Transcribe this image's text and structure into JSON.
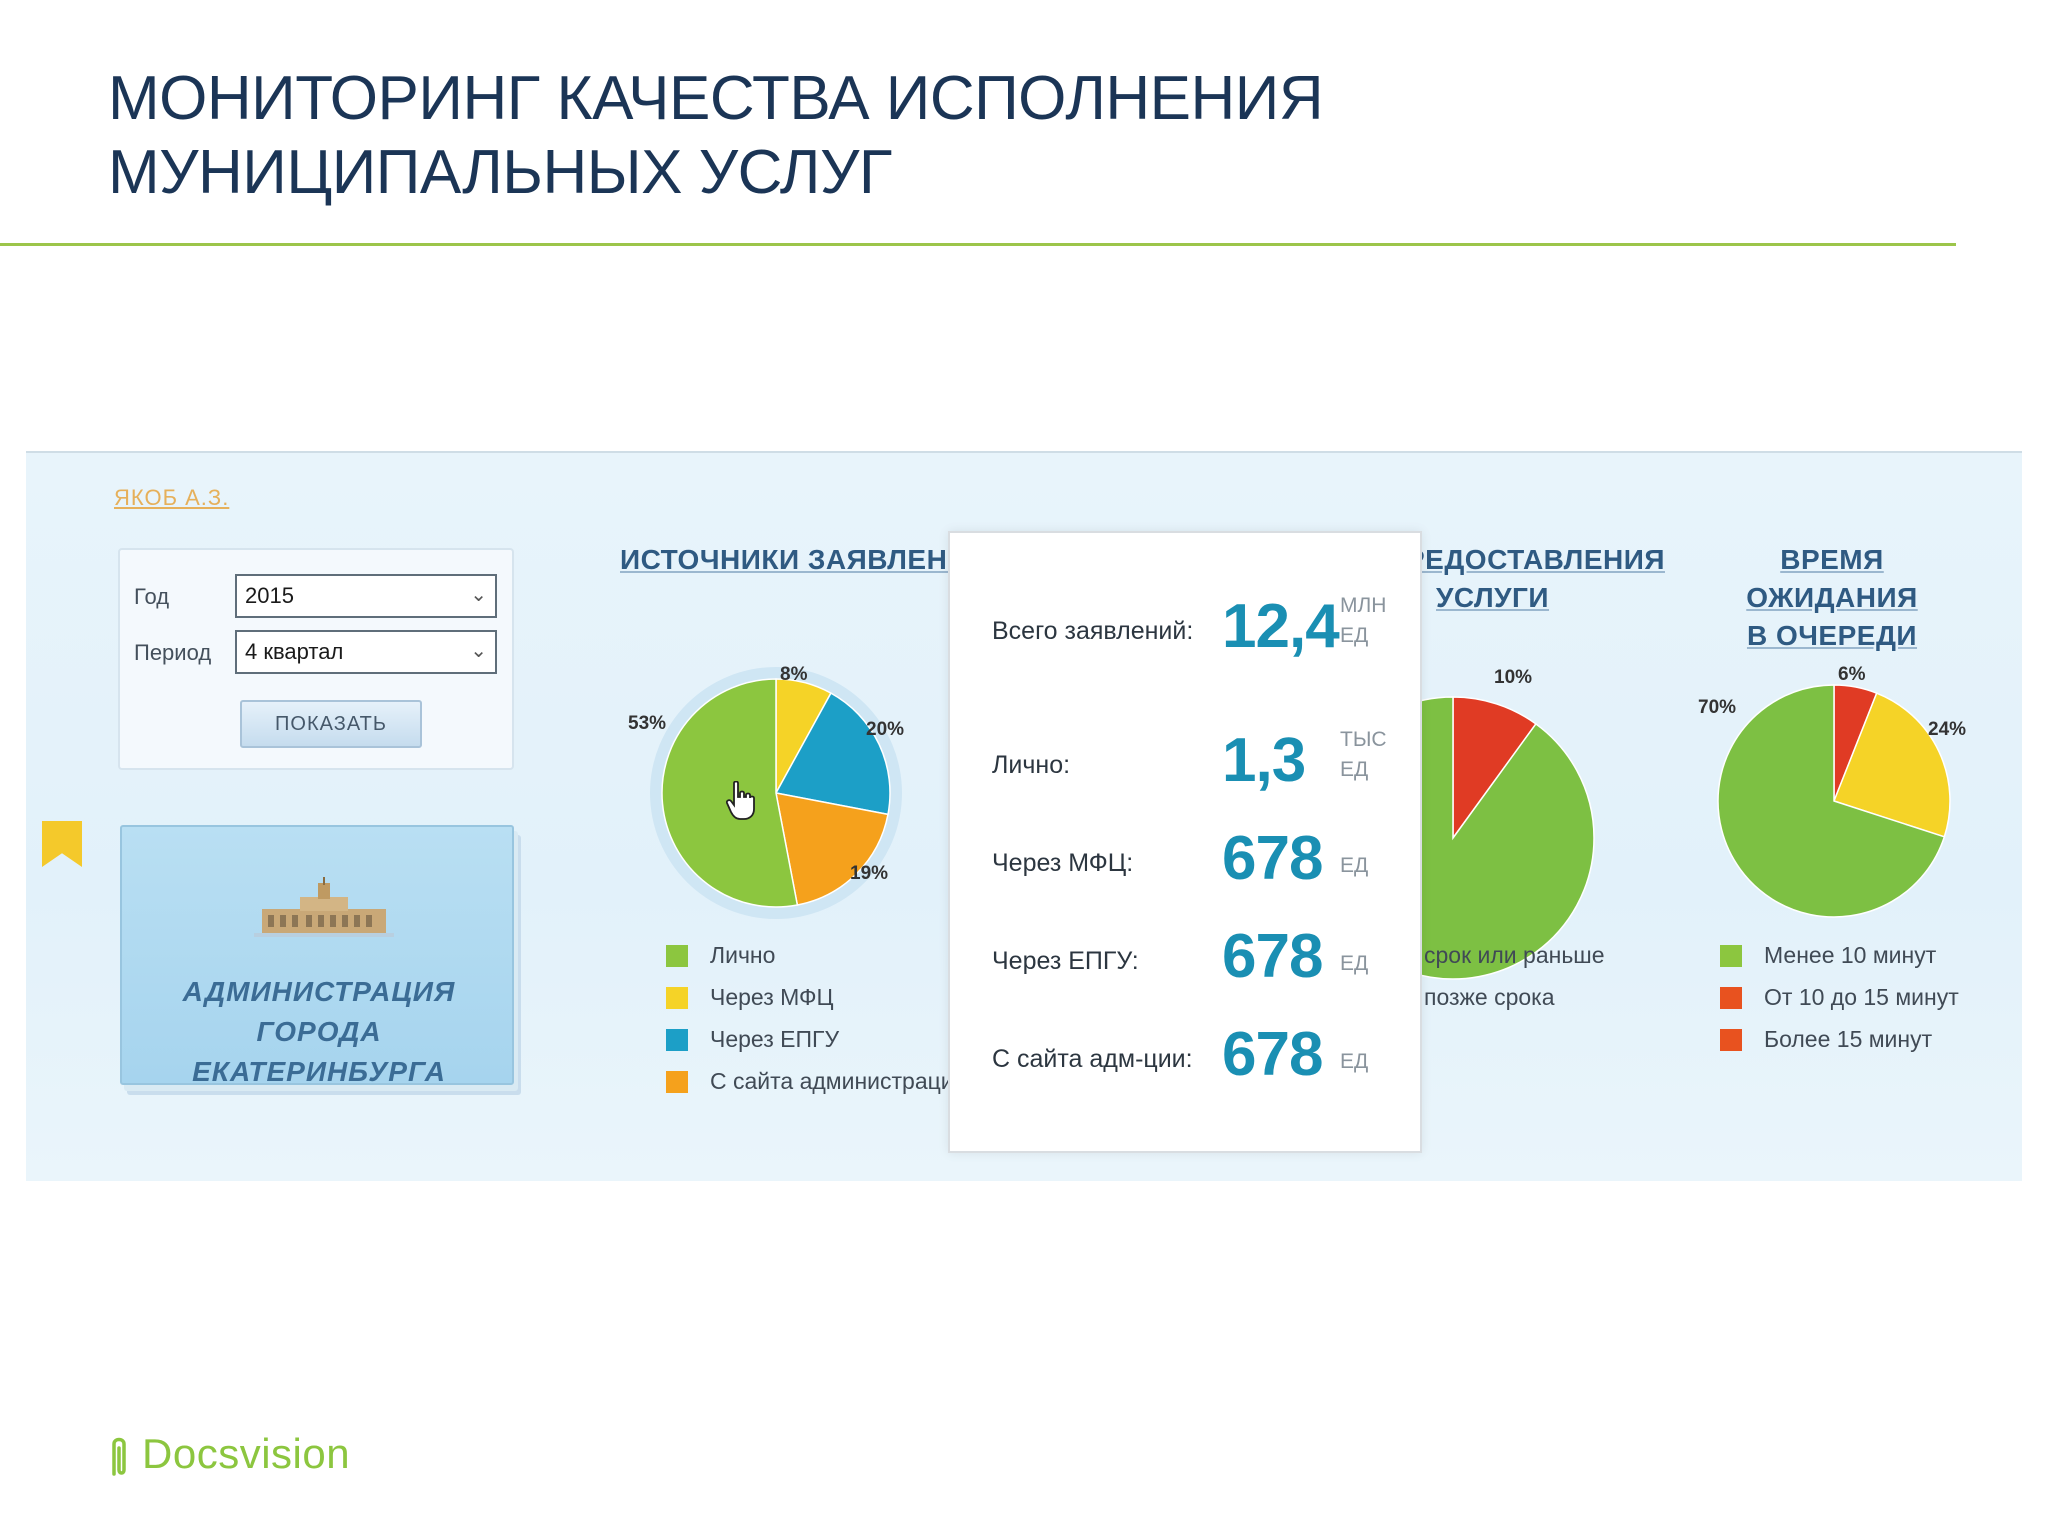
{
  "slide": {
    "title_line1": "МОНИТОРИНГ КАЧЕСТВА ИСПОЛНЕНИЯ",
    "title_line2": "МУНИЦИПАЛЬНЫХ УСЛУГ",
    "logo_text": "Docsvision"
  },
  "colors": {
    "title": "#1b3556",
    "accent_line": "#9cc54a",
    "logo": "#8cc63f",
    "value": "#1a8fb3"
  },
  "user": {
    "name": "ЯКОБ А.З."
  },
  "filters": {
    "year_label": "Год",
    "year_value": "2015",
    "period_label": "Период",
    "period_value": "4 квартал",
    "show_button": "ПОКАЗАТЬ"
  },
  "admin_card": {
    "line1": "АДМИНИСТРАЦИЯ  ГОРОДА",
    "line2": "ЕКАТЕРИНБУРГА"
  },
  "stats": {
    "rows": [
      {
        "label": "Всего заявлений:",
        "value": "12,4",
        "unit1": "МЛН",
        "unit2": "ЕД"
      },
      {
        "label": "Лично:",
        "value": "1,3",
        "unit1": "ТЫС",
        "unit2": "ЕД"
      },
      {
        "label": "Через МФЦ:",
        "value": "678",
        "unit1": "ЕД",
        "unit2": ""
      },
      {
        "label": "Через ЕПГУ:",
        "value": "678",
        "unit1": "ЕД",
        "unit2": ""
      },
      {
        "label": "С сайта адм-ции:",
        "value": "678",
        "unit1": "ЕД",
        "unit2": ""
      }
    ]
  },
  "chart_data": [
    {
      "type": "pie",
      "title_line1": "ИСТОЧНИКИ ЗАЯВЛЕНИЙ",
      "title_line2": "",
      "slices": [
        {
          "label": "Лично",
          "value": 53,
          "pct_label": "53%",
          "color": "#8cc63f"
        },
        {
          "label": "Через МФЦ",
          "value": 8,
          "pct_label": "8%",
          "color": "#f5d327"
        },
        {
          "label": "Через ЕПГУ",
          "value": 20,
          "pct_label": "20%",
          "color": "#1c9fc7"
        },
        {
          "label": "С сайта администрации",
          "value": 19,
          "pct_label": "19%",
          "color": "#f5a11c"
        }
      ]
    },
    {
      "type": "pie",
      "title_line1": "РЕДОСТАВЛЕНИЯ",
      "title_line2": "УСЛУГИ",
      "slices": [
        {
          "label": "срок или раньше",
          "value": 90,
          "pct_label": "",
          "color": "#7dc043"
        },
        {
          "label": "позже срока",
          "value": 10,
          "pct_label": "10%",
          "color": "#e03b24"
        }
      ]
    },
    {
      "type": "pie",
      "title_line1": "ВРЕМЯ ОЖИДАНИЯ",
      "title_line2": "В ОЧЕРЕДИ",
      "slices": [
        {
          "label": "Менее 10 минут",
          "value": 70,
          "pct_label": "70%",
          "color": "#7dc043"
        },
        {
          "label": "От 10 до 15 минут",
          "value": 6,
          "pct_label": "6%",
          "color": "#e03b24"
        },
        {
          "label": "Более 15 минут",
          "value": 24,
          "pct_label": "24%",
          "color": "#f5d327"
        }
      ]
    }
  ],
  "legend3_colors": [
    "#8cc63f",
    "#e8521f",
    "#e8521f"
  ]
}
